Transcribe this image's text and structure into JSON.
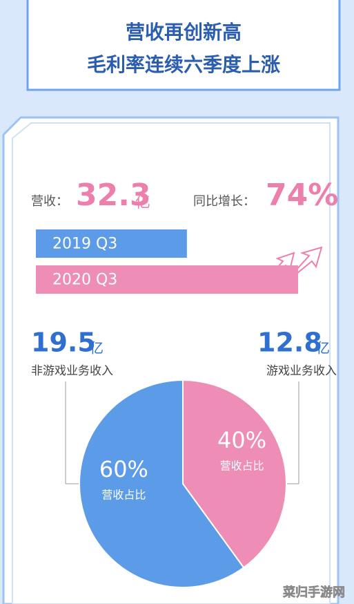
{
  "header": {
    "line1": "营收再创新高",
    "line2": "毛利率连续六季度上涨"
  },
  "revenue": {
    "label": "营收：",
    "value": "32.3",
    "unit": "亿",
    "growth_label": "同比增长：",
    "growth": "74%"
  },
  "watermark": "菜归手游网",
  "chart_data": [
    {
      "type": "bar",
      "categories": [
        "2019 Q3",
        "2020 Q3"
      ],
      "values": [
        18.6,
        32.3
      ],
      "colors": [
        "#5b9be8",
        "#ee8db6"
      ],
      "xlim": [
        0,
        32.3
      ]
    },
    {
      "type": "pie",
      "categories": [
        "非游戏业务收入",
        "游戏业务收入"
      ],
      "values": [
        60,
        40
      ],
      "value_labels": [
        "60%",
        "40%"
      ],
      "colors": [
        "#5b9be8",
        "#ee8db6"
      ],
      "amounts": [
        "19.5",
        "12.8"
      ],
      "amount_unit": "亿",
      "slice_label": "营收占比"
    }
  ]
}
